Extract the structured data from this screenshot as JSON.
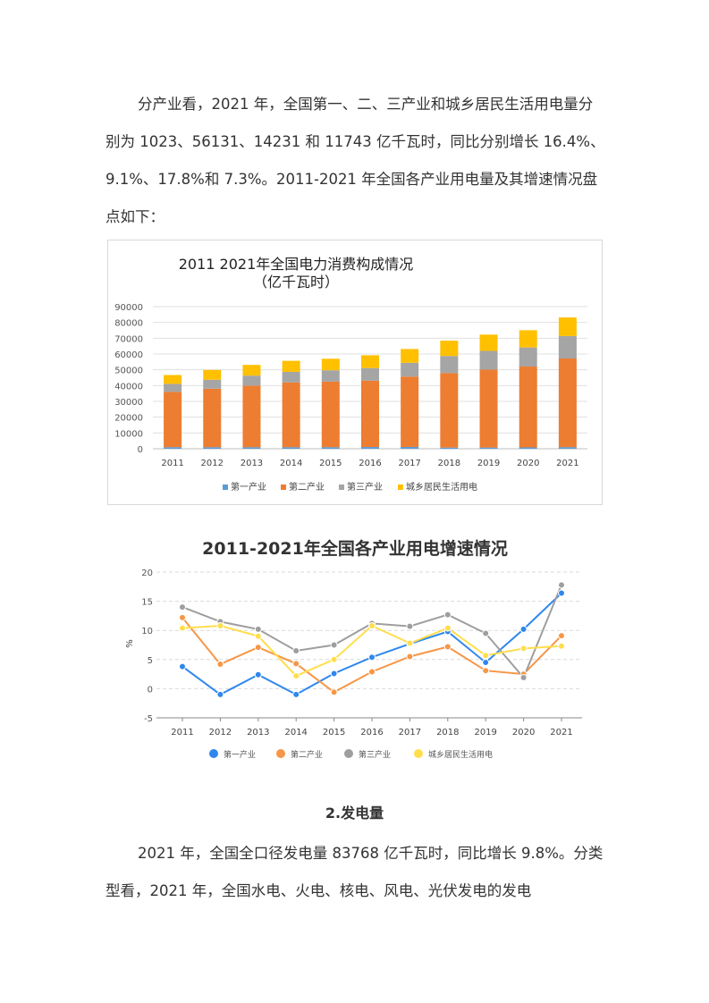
{
  "paragraph1": "分产业看，2021 年，全国第一、二、三产业和城乡居民生活用电量分别为 1023、56131、14231 和 11743 亿千瓦时，同比分别增长 16.4%、9.1%、17.8%和 7.3%。2011-2021 年全国各产业用电量及其增速情况盘点如下：",
  "section_title": "2.发电量",
  "paragraph2": "2021 年，全国全口径发电量 83768 亿千瓦时，同比增长 9.8%。分类型看，2021 年，全国水电、火电、核电、风电、光伏发电的发电",
  "colors": {
    "primary": "#5b9bd5",
    "secondary": "#ed7d31",
    "tertiary": "#a5a5a5",
    "residential": "#ffc000",
    "line_primary": "#2f87ee",
    "line_secondary": "#f79646",
    "line_tertiary": "#9e9e9e",
    "line_residential": "#ffde4d"
  },
  "chart_data": [
    {
      "type": "bar",
      "stacked": true,
      "title": "2011  2021年全国电力消费构成情况",
      "subtitle": "（亿千瓦时）",
      "categories": [
        "2011",
        "2012",
        "2013",
        "2014",
        "2015",
        "2016",
        "2017",
        "2018",
        "2019",
        "2020",
        "2021"
      ],
      "ylim": [
        0,
        90000
      ],
      "yticks": [
        0,
        10000,
        20000,
        30000,
        40000,
        50000,
        60000,
        70000,
        80000,
        90000
      ],
      "legend_position": "bottom",
      "series": [
        {
          "name": "第一产业",
          "values": [
            1000,
            1000,
            1000,
            1000,
            1000,
            1100,
            1150,
            730,
            780,
            860,
            1023
          ]
        },
        {
          "name": "第二产业",
          "values": [
            35000,
            37000,
            39000,
            41000,
            41500,
            42000,
            44500,
            47200,
            49300,
            51200,
            56131
          ]
        },
        {
          "name": "第三产业",
          "values": [
            5100,
            5700,
            6300,
            6700,
            7200,
            8000,
            8800,
            10800,
            11900,
            12100,
            14231
          ]
        },
        {
          "name": "城乡居民生活用电",
          "values": [
            5600,
            6200,
            6800,
            7000,
            7300,
            8100,
            8700,
            9700,
            10300,
            10900,
            11743
          ]
        }
      ]
    },
    {
      "type": "line",
      "title": "2011-2021年全国各产业用电增速情况",
      "ylabel": "%",
      "categories": [
        "2011",
        "2012",
        "2013",
        "2014",
        "2015",
        "2016",
        "2017",
        "2018",
        "2019",
        "2020",
        "2021"
      ],
      "ylim": [
        -5,
        20
      ],
      "yticks": [
        -5,
        0,
        5,
        10,
        15,
        20
      ],
      "grid": true,
      "legend_position": "bottom",
      "series": [
        {
          "name": "第一产业",
          "values": [
            3.8,
            -1.0,
            2.4,
            -1.0,
            2.6,
            5.4,
            7.7,
            9.8,
            4.5,
            10.2,
            16.4
          ]
        },
        {
          "name": "第二产业",
          "values": [
            12.2,
            4.2,
            7.1,
            4.3,
            -0.6,
            2.9,
            5.5,
            7.2,
            3.1,
            2.5,
            9.1
          ]
        },
        {
          "name": "第三产业",
          "values": [
            14.0,
            11.5,
            10.2,
            6.5,
            7.5,
            11.2,
            10.7,
            12.7,
            9.5,
            1.9,
            17.8
          ]
        },
        {
          "name": "城乡居民生活用电",
          "values": [
            10.4,
            10.8,
            9.0,
            2.2,
            5.0,
            10.8,
            7.8,
            10.4,
            5.7,
            6.9,
            7.3
          ]
        }
      ]
    }
  ]
}
